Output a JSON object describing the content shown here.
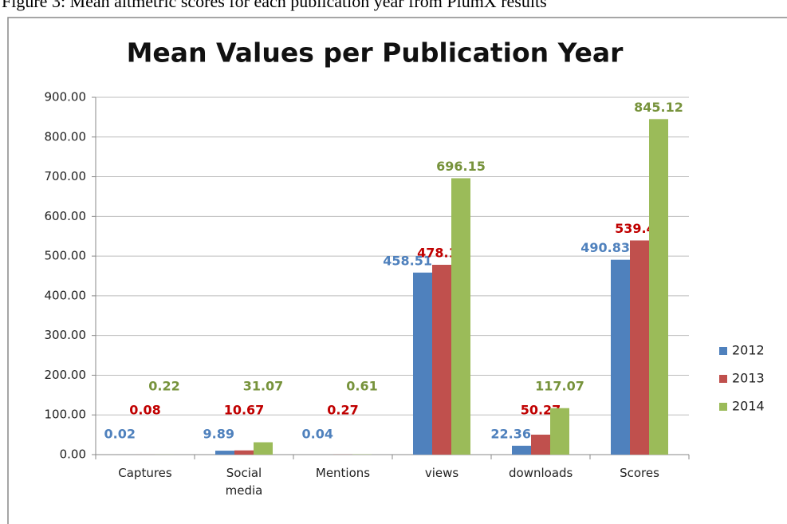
{
  "caption": "Figure 3: Mean altmetric scores for each publication year from PlumX results",
  "chart_data": {
    "type": "bar",
    "title": "Mean Values per Publication Year",
    "categories": [
      "Captures",
      "Social media",
      "Mentions",
      "views",
      "downloads",
      "Scores"
    ],
    "series": [
      {
        "name": "2012",
        "color": "#4f81bd",
        "label_color": "#4f81bd",
        "values": [
          0.02,
          9.89,
          0.04,
          458.51,
          22.36,
          490.83
        ]
      },
      {
        "name": "2013",
        "color": "#c0504d",
        "label_color": "#c00000",
        "values": [
          0.08,
          10.67,
          0.27,
          478.14,
          50.27,
          539.43
        ]
      },
      {
        "name": "2014",
        "color": "#9bbb59",
        "label_color": "#77933c",
        "values": [
          0.22,
          31.07,
          0.61,
          696.15,
          117.07,
          845.12
        ]
      }
    ],
    "ylim": [
      0,
      900
    ],
    "yticks": [
      {
        "value": 0,
        "label": "0.00"
      },
      {
        "value": 100,
        "label": "100.00"
      },
      {
        "value": 200,
        "label": "200.00"
      },
      {
        "value": 300,
        "label": "300.00"
      },
      {
        "value": 400,
        "label": "400.00"
      },
      {
        "value": 500,
        "label": "500.00"
      },
      {
        "value": 600,
        "label": "600.00"
      },
      {
        "value": 700,
        "label": "700.00"
      },
      {
        "value": 800,
        "label": "800.00"
      },
      {
        "value": 900,
        "label": "900.00"
      }
    ],
    "grid": true,
    "legend": "right"
  }
}
